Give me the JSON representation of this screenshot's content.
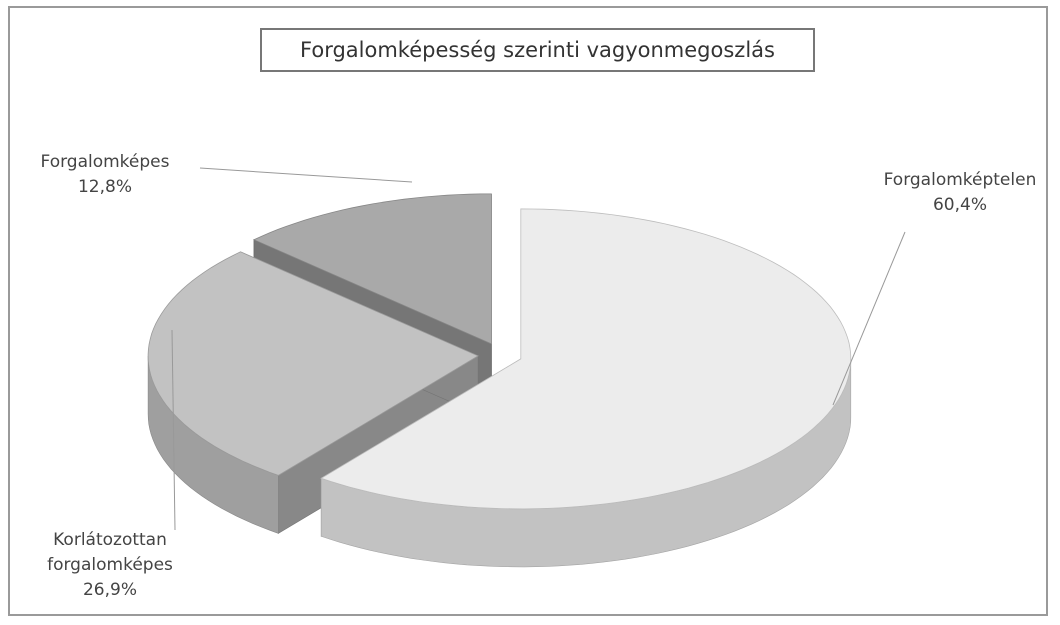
{
  "chart_data": {
    "type": "pie",
    "title": "Forgalomképesség szerinti vagyonmegoszlás",
    "categories": [
      "Forgalomképtelen",
      "Korlátozottan forgalomképes",
      "Forgalomképes"
    ],
    "values": [
      60.4,
      26.9,
      12.8
    ],
    "value_labels": [
      "60,4%",
      "26,9%",
      "12,8%"
    ],
    "colors": [
      "#ececec",
      "#c2c2c2",
      "#a9a9a9"
    ]
  }
}
